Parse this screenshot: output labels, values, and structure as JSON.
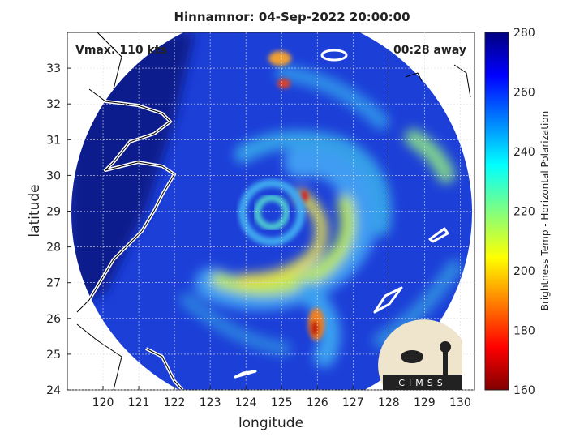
{
  "chart_data": {
    "type": "map",
    "title": "Hinnamnor: 04-Sep-2022 20:00:00",
    "xlabel": "longitude",
    "ylabel": "latitude",
    "xlim": [
      119,
      130.4
    ],
    "ylim": [
      24,
      34
    ],
    "xticks": [
      120,
      121,
      122,
      123,
      124,
      125,
      126,
      127,
      128,
      129,
      130
    ],
    "yticks": [
      24,
      25,
      26,
      27,
      28,
      29,
      30,
      31,
      32,
      33
    ],
    "grid": true,
    "annotations": {
      "left": "Vmax: 110 kts",
      "right": "00:28 away"
    },
    "colorbar": {
      "label": "Brightness Temp - Horizontal Polarization",
      "lim": [
        160,
        280
      ],
      "ticks": [
        160,
        180,
        200,
        220,
        240,
        260,
        280
      ]
    },
    "logo": "CIMSS"
  }
}
